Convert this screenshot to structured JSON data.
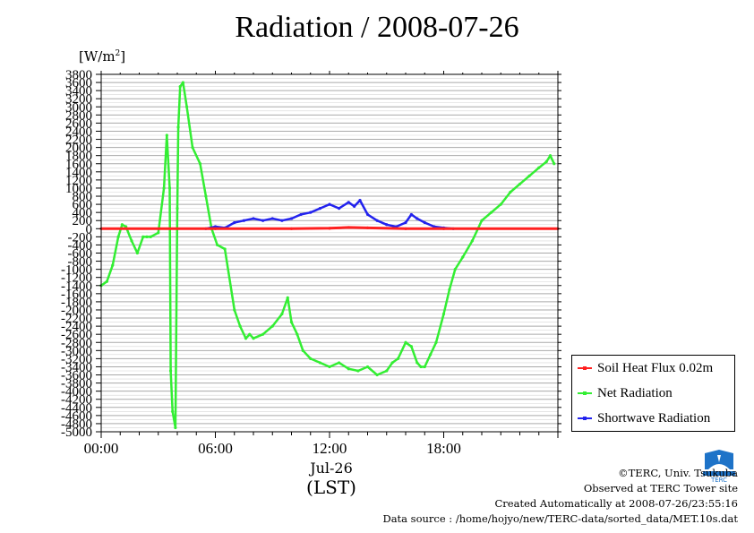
{
  "title": "Radiation / 2008-07-26",
  "unit": "[W/m",
  "unit_sup": "2",
  "unit_close": "]",
  "date_label": "Jul-26",
  "tz_label": "(LST)",
  "footer": {
    "copyright": "©TERC, Univ. Tsukuba",
    "observed": "Observed at TERC Tower site",
    "created": "Created Automatically at 2008-07-26/23:55:16",
    "source": "Data source : /home/hojyo/new/TERC-data/sorted_data/MET.10s.dat"
  },
  "logo_text": "TERC",
  "chart_data": {
    "type": "line",
    "title": "Radiation / 2008-07-26",
    "ylabel": "[W/m2]",
    "xlabel": "(LST)",
    "xlim": [
      0,
      24
    ],
    "ylim": [
      -5000,
      3800
    ],
    "x_ticks": [
      0,
      6,
      12,
      18
    ],
    "x_tick_labels": [
      "00:00",
      "06:00",
      "12:00",
      "18:00"
    ],
    "y_ticks": [
      3800,
      3600,
      3400,
      3200,
      3000,
      2800,
      2600,
      2400,
      2200,
      2000,
      1800,
      1600,
      1400,
      1200,
      1000,
      800,
      600,
      400,
      200,
      0,
      -200,
      -400,
      -600,
      -800,
      -1000,
      -1200,
      -1400,
      -1600,
      -1800,
      -2000,
      -2200,
      -2400,
      -2600,
      -2800,
      -3000,
      -3200,
      -3400,
      -3600,
      -3800,
      -4000,
      -4200,
      -4400,
      -4600,
      -4800,
      -5000
    ],
    "grid": true,
    "legend_position": "right",
    "colors": {
      "soil": "#ff2020",
      "net": "#33ee33",
      "shortwave": "#2222ee"
    },
    "series": [
      {
        "name": "Soil Heat Flux 0.02m",
        "color": "#ff2020",
        "x": [
          0,
          6,
          10,
          12,
          13,
          14,
          16,
          18,
          24
        ],
        "y": [
          0,
          0,
          0,
          10,
          30,
          20,
          0,
          0,
          0
        ]
      },
      {
        "name": "Net Radiation",
        "color": "#33ee33",
        "x": [
          0,
          0.3,
          0.6,
          0.9,
          1.1,
          1.3,
          1.6,
          1.9,
          2.2,
          2.4,
          2.6,
          3.0,
          3.3,
          3.45,
          3.6,
          3.65,
          3.75,
          3.9,
          4.0,
          4.05,
          4.15,
          4.3,
          4.5,
          4.8,
          5.2,
          5.5,
          5.8,
          6.1,
          6.5,
          7.0,
          7.3,
          7.6,
          7.8,
          8.0,
          8.5,
          9.0,
          9.5,
          9.8,
          10.0,
          10.3,
          10.6,
          11.0,
          11.5,
          12.0,
          12.5,
          13.0,
          13.5,
          14.0,
          14.5,
          15.0,
          15.3,
          15.6,
          16.0,
          16.3,
          16.6,
          16.8,
          17.0,
          17.3,
          17.6,
          18.0,
          18.3,
          18.6,
          19.0,
          19.5,
          20.0,
          20.5,
          21.0,
          21.5,
          22.0,
          22.5,
          23.0,
          23.4,
          23.6,
          23.8
        ],
        "y": [
          -1400,
          -1300,
          -900,
          -200,
          100,
          50,
          -300,
          -600,
          -200,
          -200,
          -200,
          -100,
          1000,
          2300,
          1000,
          -3500,
          -4500,
          -4900,
          500,
          2500,
          3500,
          3600,
          3000,
          2000,
          1600,
          800,
          0,
          -400,
          -500,
          -2000,
          -2400,
          -2700,
          -2600,
          -2700,
          -2600,
          -2400,
          -2100,
          -1700,
          -2300,
          -2600,
          -3000,
          -3200,
          -3300,
          -3400,
          -3300,
          -3450,
          -3500,
          -3400,
          -3600,
          -3500,
          -3300,
          -3200,
          -2800,
          -2900,
          -3300,
          -3400,
          -3400,
          -3100,
          -2800,
          -2100,
          -1500,
          -1000,
          -700,
          -300,
          200,
          400,
          600,
          900,
          1100,
          1300,
          1500,
          1650,
          1800,
          1600
        ]
      },
      {
        "name": "Shortwave Radiation",
        "color": "#2222ee",
        "x": [
          5.5,
          6.0,
          6.5,
          7.0,
          7.5,
          8.0,
          8.5,
          9.0,
          9.5,
          10.0,
          10.5,
          11.0,
          11.5,
          12.0,
          12.5,
          13.0,
          13.3,
          13.6,
          14.0,
          14.5,
          15.0,
          15.5,
          16.0,
          16.3,
          16.6,
          17.0,
          17.5,
          18.0,
          18.5
        ],
        "y": [
          0,
          50,
          20,
          150,
          200,
          250,
          200,
          250,
          200,
          250,
          350,
          400,
          500,
          600,
          500,
          650,
          550,
          700,
          350,
          200,
          100,
          50,
          150,
          350,
          250,
          150,
          50,
          20,
          0
        ]
      }
    ]
  }
}
